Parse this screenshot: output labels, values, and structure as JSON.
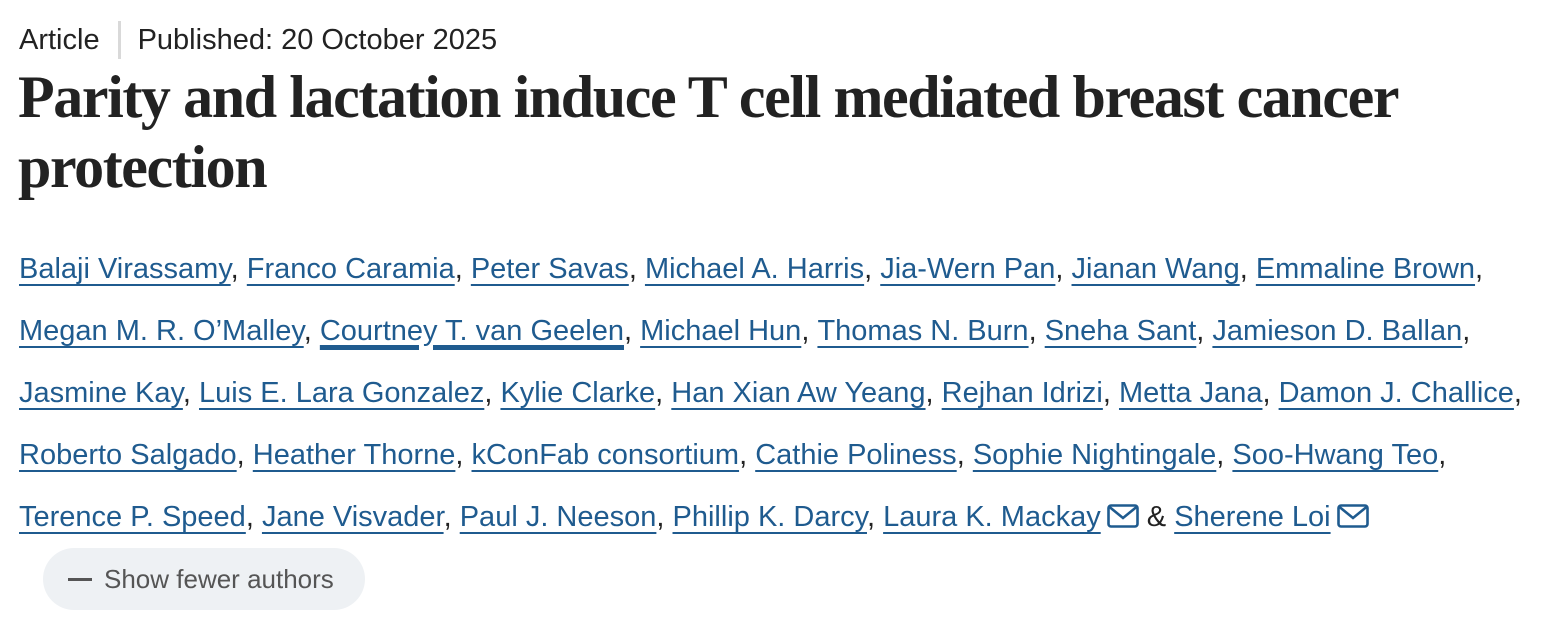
{
  "meta": {
    "article_type": "Article",
    "published": "Published: 20 October 2025"
  },
  "title": "Parity and lactation induce T cell mediated breast cancer protection",
  "authors": [
    "Balaji Virassamy",
    "Franco Caramia",
    "Peter Savas",
    "Michael A. Harris",
    "Jia-Wern Pan",
    "Jianan Wang",
    "Emmaline Brown",
    "Megan M. R. O’Malley",
    "Courtney T. van Geelen",
    "Michael Hun",
    "Thomas N. Burn",
    "Sneha Sant",
    "Jamieson D. Ballan",
    "Jasmine Kay",
    "Luis E. Lara Gonzalez",
    "Kylie Clarke",
    "Han Xian Aw Yeang",
    "Rejhan Idrizi",
    "Metta Jana",
    "Damon J. Challice",
    "Roberto Salgado",
    "Heather Thorne",
    "kConFab consortium",
    "Cathie Poliness",
    "Sophie Nightingale",
    "Soo-Hwang Teo",
    "Terence P. Speed",
    "Jane Visvader",
    "Paul J. Neeson",
    "Phillip K. Darcy",
    "Laura K. Mackay",
    "Sherene Loi"
  ],
  "separators": {
    "comma": ",",
    "ampersand": "&"
  },
  "icons": {
    "corresponding": "mail-icon",
    "collapse": "minus-icon"
  },
  "show_fewer_label": "Show fewer authors",
  "colors": {
    "link": "#1f5b8f",
    "text": "#222222",
    "pill": "#eef1f4"
  }
}
